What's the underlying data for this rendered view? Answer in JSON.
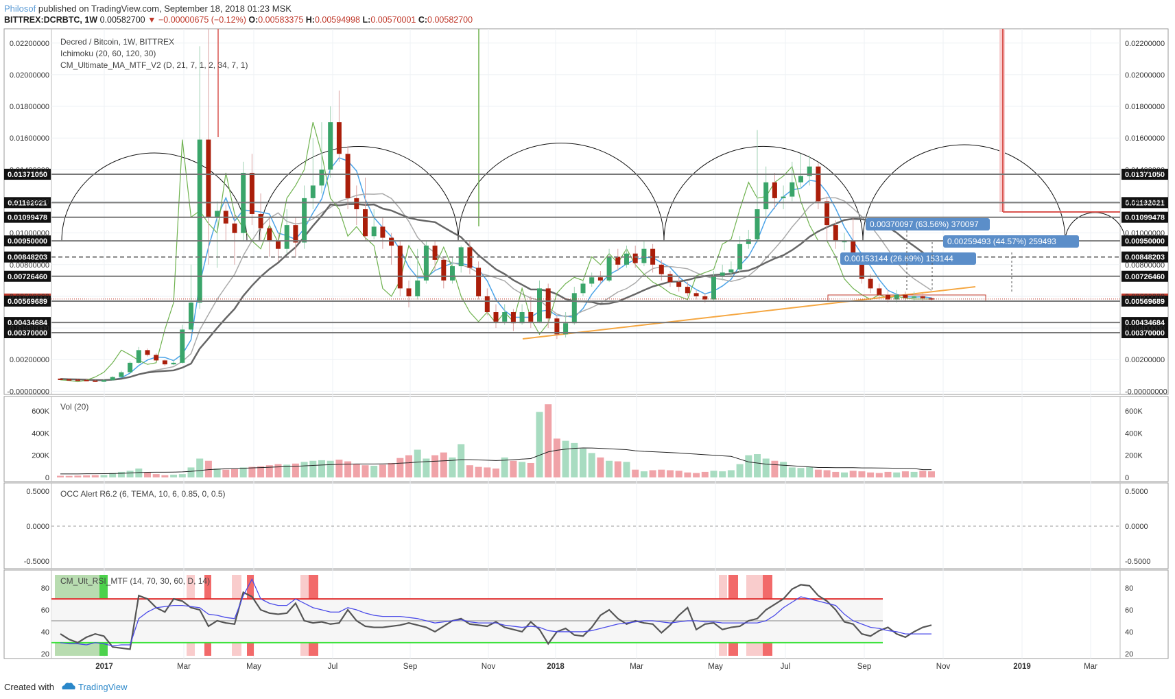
{
  "header": {
    "author": "Philosof",
    "published": "published on TradingView.com, September 18, 2018 01:23 MSK",
    "symbol": "BITTREX:DCRBTC, 1W",
    "price": "0.00582700",
    "change": "▼ −0.00000675 (−0.12%)",
    "o_label": "O:",
    "o": "0.00583375",
    "h_label": "H:",
    "h": "0.00594998",
    "l_label": "L:",
    "l": "0.00570001",
    "c_label": "C:",
    "c": "0.00582700"
  },
  "legend": {
    "title": "Decred / Bitcoin, 1W, BITTREX",
    "ichimoku": "Ichimoku (20, 60, 120, 30)",
    "cm_ma": "CM_Ultimate_MA_MTF_V2 (D, 21, 7, 1, 2, 34, 7, 1)",
    "vol": "Vol (20)",
    "occ": "OCC Alert R6.2 (6, TEMA, 10, 6, 0.85, 0, 0.5)",
    "rsi": "CM_Ult_RSI_MTF (14, 70, 30, 60, D, 14)"
  },
  "footer": {
    "created": "Created with",
    "brand": "TradingView"
  },
  "colors": {
    "up": "#3aa56a",
    "down": "#aa1e0a",
    "vol_up": "#a8dcc1",
    "vol_down": "#f0a3a8",
    "blue": "#4aa3e8",
    "green": "#6fb24f",
    "orange": "#f5a742",
    "red": "#d9544f"
  },
  "chart_data": [
    {
      "type": "candlestick",
      "title": "Decred / Bitcoin, 1W, BITTREX",
      "ylim": [
        -0.0002,
        0.0229
      ],
      "y_ticks": [
        "0.02200000",
        "0.02000000",
        "0.01800000",
        "0.01600000",
        "0.01400000",
        "0.01200000",
        "0.01000000",
        "0.00800000",
        "0.00600000",
        "0.00400000",
        "0.00200000",
        "-0.00000000"
      ],
      "x_ticks": [
        "2017",
        "Mar",
        "May",
        "Jul",
        "Sep",
        "Nov",
        "2018",
        "Mar",
        "May",
        "Jul",
        "Sep",
        "Nov",
        "2019",
        "Mar"
      ],
      "price_levels": [
        {
          "value": "0.01371050",
          "y": 0.0137105,
          "style": "solid"
        },
        {
          "value": "0.01192021",
          "y": 0.01192021,
          "style": "solid"
        },
        {
          "value": "0.01099478",
          "y": 0.01099478,
          "style": "solid"
        },
        {
          "value": "0.00950000",
          "y": 0.0095,
          "style": "solid"
        },
        {
          "value": "0.00848203",
          "y": 0.00848203,
          "style": "dashed"
        },
        {
          "value": "0.00726460",
          "y": 0.0072646,
          "style": "solid"
        },
        {
          "value": "0.00582700",
          "y": 0.005827,
          "style": "current"
        },
        {
          "value": "0.00569689",
          "y": 0.00569689,
          "style": "solid"
        },
        {
          "value": "0.00434684",
          "y": 0.00434684,
          "style": "solid"
        },
        {
          "value": "0.00370000",
          "y": 0.0037,
          "style": "solid"
        }
      ],
      "annotations": [
        {
          "text": "0.00370097 (63.56%) 370097"
        },
        {
          "text": "0.00259493 (44.57%) 259493"
        },
        {
          "text": "0.00153144 (26.69%) 153144"
        }
      ],
      "candles": [
        [
          0.0008,
          0.00078,
          0.00082,
          0.00076
        ],
        [
          0.00076,
          0.00074,
          0.00079,
          0.00072
        ],
        [
          0.00074,
          0.00072,
          0.00077,
          0.0007
        ],
        [
          0.00072,
          0.00068,
          0.00075,
          0.00066
        ],
        [
          0.00068,
          0.0006,
          0.00072,
          0.00058
        ],
        [
          0.0006,
          0.0007,
          0.00075,
          0.00058
        ],
        [
          0.0007,
          0.0009,
          0.00095,
          0.00068
        ],
        [
          0.0009,
          0.0012,
          0.0013,
          0.00088
        ],
        [
          0.0012,
          0.0018,
          0.0019,
          0.00115
        ],
        [
          0.0018,
          0.0026,
          0.0028,
          0.00175
        ],
        [
          0.0026,
          0.0023,
          0.0027,
          0.0022
        ],
        [
          0.0023,
          0.00195,
          0.0024,
          0.0019
        ],
        [
          0.00195,
          0.0017,
          0.002,
          0.0016
        ],
        [
          0.0017,
          0.0018,
          0.002,
          0.00165
        ],
        [
          0.0018,
          0.0039,
          0.0042,
          0.00175
        ],
        [
          0.0039,
          0.0056,
          0.008,
          0.0038
        ],
        [
          0.0056,
          0.0159,
          0.0218,
          0.0052
        ],
        [
          0.0159,
          0.011,
          0.0229,
          0.008
        ],
        [
          0.011,
          0.0114,
          0.012,
          0.0078
        ],
        [
          0.0114,
          0.0106,
          0.0118,
          0.0095
        ],
        [
          0.0106,
          0.01,
          0.0112,
          0.008
        ],
        [
          0.01,
          0.0138,
          0.0145,
          0.0095
        ],
        [
          0.0138,
          0.0112,
          0.015,
          0.0105
        ],
        [
          0.0112,
          0.0103,
          0.0125,
          0.0095
        ],
        [
          0.0103,
          0.0095,
          0.011,
          0.0085
        ],
        [
          0.0095,
          0.009,
          0.01,
          0.0082
        ],
        [
          0.009,
          0.0105,
          0.0115,
          0.0087
        ],
        [
          0.0105,
          0.0094,
          0.011,
          0.0085
        ],
        [
          0.0094,
          0.0122,
          0.013,
          0.009
        ],
        [
          0.0122,
          0.013,
          0.016,
          0.0115
        ],
        [
          0.013,
          0.014,
          0.017,
          0.0125
        ],
        [
          0.014,
          0.017,
          0.018,
          0.0135
        ],
        [
          0.017,
          0.015,
          0.019,
          0.0145
        ],
        [
          0.015,
          0.0122,
          0.0155,
          0.0115
        ],
        [
          0.0122,
          0.0115,
          0.013,
          0.0105
        ],
        [
          0.0115,
          0.0098,
          0.0135,
          0.0095
        ],
        [
          0.0098,
          0.0104,
          0.0115,
          0.0096
        ],
        [
          0.0104,
          0.0097,
          0.011,
          0.009
        ],
        [
          0.0097,
          0.0092,
          0.01,
          0.008
        ],
        [
          0.0092,
          0.0065,
          0.0095,
          0.006
        ],
        [
          0.0065,
          0.006,
          0.007,
          0.0053
        ],
        [
          0.006,
          0.007,
          0.009,
          0.0058
        ],
        [
          0.007,
          0.0092,
          0.0095,
          0.0068
        ],
        [
          0.0092,
          0.0083,
          0.0095,
          0.0076
        ],
        [
          0.0083,
          0.007,
          0.0085,
          0.0065
        ],
        [
          0.007,
          0.0079,
          0.0085,
          0.0068
        ],
        [
          0.0079,
          0.0091,
          0.0092,
          0.0075
        ],
        [
          0.0091,
          0.0078,
          0.0095,
          0.0074
        ],
        [
          0.0078,
          0.006,
          0.0082,
          0.0058
        ],
        [
          0.006,
          0.005,
          0.0065,
          0.0048
        ],
        [
          0.005,
          0.0044,
          0.0055,
          0.004
        ],
        [
          0.0044,
          0.005,
          0.0055,
          0.0042
        ],
        [
          0.005,
          0.0043,
          0.0052,
          0.0038
        ],
        [
          0.0043,
          0.005,
          0.0055,
          0.0042
        ],
        [
          0.005,
          0.0044,
          0.006,
          0.004
        ],
        [
          0.0044,
          0.0065,
          0.007,
          0.0043
        ],
        [
          0.0065,
          0.0046,
          0.0068,
          0.004
        ],
        [
          0.0046,
          0.0036,
          0.0048,
          0.0033
        ],
        [
          0.0036,
          0.0043,
          0.005,
          0.0034
        ],
        [
          0.0043,
          0.0062,
          0.0066,
          0.0042
        ],
        [
          0.0062,
          0.0068,
          0.007,
          0.006
        ],
        [
          0.0068,
          0.0072,
          0.0075,
          0.0066
        ],
        [
          0.0072,
          0.007,
          0.0076,
          0.0068
        ],
        [
          0.007,
          0.0085,
          0.009,
          0.0069
        ],
        [
          0.0085,
          0.008,
          0.009,
          0.0076
        ],
        [
          0.008,
          0.0087,
          0.0092,
          0.0078
        ],
        [
          0.0087,
          0.0081,
          0.0092,
          0.0078
        ],
        [
          0.0081,
          0.009,
          0.0095,
          0.0079
        ],
        [
          0.009,
          0.008,
          0.0093,
          0.0075
        ],
        [
          0.008,
          0.0074,
          0.0083,
          0.007
        ],
        [
          0.0074,
          0.0069,
          0.0076,
          0.0066
        ],
        [
          0.0069,
          0.0066,
          0.0072,
          0.0063
        ],
        [
          0.0066,
          0.0062,
          0.0069,
          0.006
        ],
        [
          0.0062,
          0.006,
          0.0064,
          0.0058
        ],
        [
          0.006,
          0.0058,
          0.0062,
          0.0056
        ],
        [
          0.0058,
          0.0073,
          0.0076,
          0.0057
        ],
        [
          0.0073,
          0.0075,
          0.008,
          0.007
        ],
        [
          0.0075,
          0.0077,
          0.0082,
          0.0072
        ],
        [
          0.0077,
          0.0093,
          0.0098,
          0.0075
        ],
        [
          0.0093,
          0.0096,
          0.0102,
          0.009
        ],
        [
          0.0096,
          0.0115,
          0.0165,
          0.0094
        ],
        [
          0.0115,
          0.0132,
          0.0142,
          0.011
        ],
        [
          0.0132,
          0.0122,
          0.0138,
          0.0115
        ],
        [
          0.0122,
          0.0123,
          0.013,
          0.0115
        ],
        [
          0.0123,
          0.0132,
          0.0145,
          0.012
        ],
        [
          0.0132,
          0.0136,
          0.015,
          0.0128
        ],
        [
          0.0136,
          0.0142,
          0.0149,
          0.013
        ],
        [
          0.0142,
          0.012,
          0.0144,
          0.0115
        ],
        [
          0.012,
          0.0105,
          0.0123,
          0.0095
        ],
        [
          0.0105,
          0.0095,
          0.0108,
          0.009
        ],
        [
          0.0095,
          0.0095,
          0.01,
          0.0089
        ],
        [
          0.0095,
          0.0085,
          0.011,
          0.0083
        ],
        [
          0.0085,
          0.0071,
          0.0088,
          0.0068
        ],
        [
          0.0071,
          0.0065,
          0.0074,
          0.0062
        ],
        [
          0.0065,
          0.0061,
          0.0068,
          0.0058
        ],
        [
          0.0061,
          0.0058,
          0.0064,
          0.0056
        ],
        [
          0.0058,
          0.0061,
          0.0064,
          0.0056
        ],
        [
          0.0061,
          0.0059,
          0.0063,
          0.0057
        ],
        [
          0.0059,
          0.006,
          0.0063,
          0.0057
        ],
        [
          0.006,
          0.00588,
          0.0062,
          0.00572
        ],
        [
          0.00588,
          0.005827,
          0.00595,
          0.0057
        ]
      ]
    },
    {
      "type": "bar",
      "title": "Vol (20)",
      "ylim": [
        0,
        680000
      ],
      "y_ticks": [
        "600K",
        "400K",
        "200K",
        "0"
      ],
      "values": [
        15000,
        14000,
        16000,
        18000,
        20000,
        22000,
        40000,
        50000,
        60000,
        80000,
        45000,
        30000,
        20000,
        25000,
        30000,
        90000,
        170000,
        150000,
        80000,
        70000,
        75000,
        90000,
        95000,
        100000,
        110000,
        120000,
        115000,
        125000,
        140000,
        150000,
        155000,
        150000,
        160000,
        145000,
        120000,
        110000,
        105000,
        115000,
        130000,
        175000,
        200000,
        250000,
        170000,
        200000,
        225000,
        180000,
        300000,
        110000,
        95000,
        90000,
        80000,
        180000,
        150000,
        140000,
        130000,
        590000,
        660000,
        350000,
        330000,
        310000,
        260000,
        220000,
        180000,
        150000,
        145000,
        140000,
        70000,
        55000,
        65000,
        70000,
        65000,
        60000,
        45000,
        40000,
        50000,
        60000,
        55000,
        65000,
        120000,
        200000,
        210000,
        170000,
        150000,
        140000,
        90000,
        85000,
        95000,
        70000,
        65000,
        50000,
        45000,
        60000,
        55000,
        45000,
        40000,
        50000,
        45000,
        55000,
        50000,
        60000,
        55000
      ],
      "ma": [
        32000,
        32000,
        32000,
        33000,
        33000,
        34000,
        35000,
        37000,
        40000,
        44000,
        46000,
        47000,
        47000,
        48000,
        50000,
        55000,
        62000,
        70000,
        74000,
        78000,
        80000,
        83000,
        86000,
        89000,
        92000,
        95000,
        97000,
        100000,
        104000,
        108000,
        112000,
        115000,
        118000,
        120000,
        121000,
        121000,
        121000,
        122000,
        124000,
        128000,
        132000,
        138000,
        142000,
        146000,
        150000,
        154000,
        160000,
        160000,
        158000,
        155000,
        152000,
        155000,
        160000,
        165000,
        170000,
        200000,
        230000,
        245000,
        255000,
        262000,
        266000,
        265000,
        262000,
        258000,
        254000,
        250000,
        240000,
        235000,
        232000,
        228000,
        224000,
        220000,
        215000,
        210000,
        205000,
        200000,
        195000,
        190000,
        165000,
        140000,
        130000,
        120000,
        115000,
        110000,
        105000,
        100000,
        95000,
        90000,
        90000,
        88000,
        88000,
        88000,
        86000,
        86000,
        85000,
        84000,
        83000,
        82000,
        80000,
        70000,
        70000
      ]
    },
    {
      "type": "line",
      "title": "OCC Alert R6.2 (6, TEMA, 10, 6, 0.85, 0, 0.5)",
      "ylim": [
        -0.55,
        0.55
      ],
      "y_ticks": [
        "0.5000",
        "0.0000",
        "-0.5000"
      ]
    },
    {
      "type": "line",
      "title": "CM_Ult_RSI_MTF (14, 70, 30, 60, D, 14)",
      "ylim": [
        18,
        92
      ],
      "y_ticks": [
        "80",
        "60",
        "40",
        "20"
      ],
      "levels": [
        70,
        50,
        30
      ],
      "series": [
        {
          "values": [
            38,
            33,
            30,
            35,
            38,
            36,
            26,
            25,
            24,
            73,
            70,
            62,
            58,
            70,
            68,
            62,
            60,
            45,
            50,
            48,
            47,
            76,
            72,
            60,
            57,
            56,
            57,
            66,
            50,
            48,
            49,
            47,
            48,
            60,
            50,
            45,
            44,
            44,
            45,
            46,
            48,
            46,
            44,
            40,
            45,
            50,
            52,
            47,
            46,
            45,
            49,
            44,
            42,
            40,
            49,
            42,
            29,
            40,
            43,
            37,
            36,
            44,
            55,
            60,
            52,
            47,
            50,
            48,
            47,
            39,
            46,
            55,
            62,
            42,
            47,
            48,
            42,
            44,
            45,
            50,
            52,
            60,
            65,
            70,
            79,
            83,
            82,
            73,
            68,
            60,
            49,
            47,
            38,
            36,
            41,
            44,
            38,
            35,
            40,
            44,
            46
          ]
        },
        {
          "values": [
            30,
            29,
            29,
            28,
            30,
            29,
            27,
            28,
            28,
            52,
            58,
            62,
            63,
            64,
            64,
            63,
            62,
            56,
            55,
            53,
            52,
            73,
            88,
            70,
            66,
            64,
            64,
            70,
            66,
            62,
            60,
            58,
            58,
            62,
            60,
            57,
            55,
            54,
            54,
            54,
            53,
            52,
            50,
            48,
            49,
            50,
            51,
            49,
            48,
            48,
            48,
            46,
            45,
            44,
            45,
            44,
            41,
            40,
            40,
            40,
            40,
            41,
            43,
            45,
            47,
            48,
            49,
            50,
            50,
            49,
            48,
            49,
            50,
            50,
            49,
            49,
            48,
            48,
            48,
            48,
            48,
            50,
            55,
            62,
            67,
            72,
            70,
            68,
            66,
            64,
            56,
            50,
            47,
            44,
            43,
            41,
            40,
            38,
            38,
            38,
            38
          ]
        }
      ]
    }
  ]
}
